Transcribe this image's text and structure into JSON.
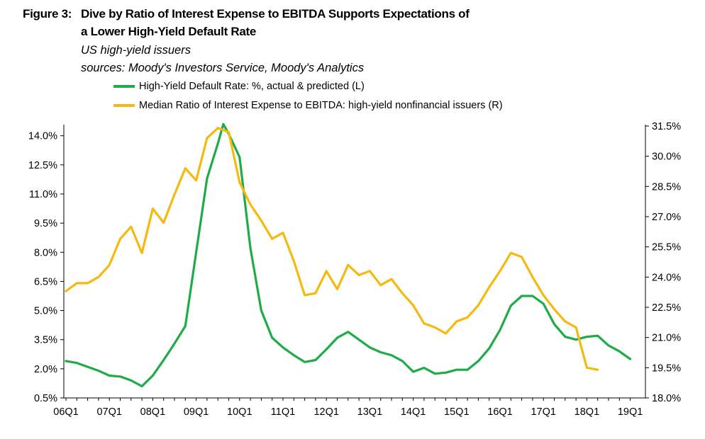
{
  "header": {
    "figure_label": "Figure 3:",
    "title_line1": "Dive by Ratio of Interest Expense to EBITDA Supports Expectations of",
    "title_line2": "a Lower High-Yield Default Rate",
    "subtitle": "US high-yield issuers",
    "sources": "sources: Moody's Investors Service, Moody's Analytics"
  },
  "colors": {
    "default_rate": "#1fab48",
    "median_ratio": "#f6b90f",
    "axis": "#000000"
  },
  "chart_data": {
    "type": "line",
    "legend": "top-left",
    "grid": false,
    "x_tick_labels": [
      "06Q1",
      "07Q1",
      "08Q1",
      "09Q1",
      "10Q1",
      "11Q1",
      "12Q1",
      "13Q1",
      "14Q1",
      "15Q1",
      "16Q1",
      "17Q1",
      "18Q1",
      "19Q1"
    ],
    "y_left": {
      "range": [
        0.5,
        14.5
      ],
      "ticks": [
        0.5,
        2.0,
        3.5,
        5.0,
        6.5,
        8.0,
        9.5,
        11.0,
        12.5,
        14.0
      ],
      "tick_labels": [
        "0.5%",
        "2.0%",
        "3.5%",
        "5.0%",
        "6.5%",
        "8.0%",
        "9.5%",
        "11.0%",
        "12.5%",
        "14.0%"
      ]
    },
    "y_right": {
      "range": [
        18.0,
        31.5
      ],
      "ticks": [
        18.0,
        19.5,
        21.0,
        22.5,
        24.0,
        25.5,
        27.0,
        28.5,
        30.0,
        31.5
      ],
      "tick_labels": [
        "18.0%",
        "19.5%",
        "21.0%",
        "22.5%",
        "24.0%",
        "25.5%",
        "27.0%",
        "28.5%",
        "30.0%",
        "31.5%"
      ]
    },
    "series": [
      {
        "name": "High-Yield Default Rate: %, actual & predicted (L)",
        "axis": "left",
        "x": [
          0,
          0.25,
          0.5,
          0.75,
          1,
          1.25,
          1.5,
          1.75,
          2,
          2.25,
          2.5,
          2.75,
          3,
          3.25,
          3.5,
          3.625,
          3.75,
          4,
          4.25,
          4.5,
          4.75,
          5,
          5.25,
          5.5,
          5.75,
          6,
          6.25,
          6.5,
          6.75,
          7,
          7.25,
          7.5,
          7.75,
          8,
          8.25,
          8.5,
          8.75,
          9,
          9.25,
          9.5,
          9.75,
          10,
          10.25,
          10.5,
          10.75,
          11,
          11.25,
          11.5,
          11.75,
          12,
          12.25,
          12.5,
          12.75,
          13
        ],
        "values": [
          2.4,
          2.3,
          2.1,
          1.9,
          1.65,
          1.6,
          1.4,
          1.1,
          1.65,
          2.45,
          3.3,
          4.2,
          8.0,
          11.8,
          13.6,
          14.6,
          14.1,
          12.9,
          8.2,
          5.0,
          3.6,
          3.1,
          2.7,
          2.35,
          2.45,
          3.0,
          3.6,
          3.9,
          3.5,
          3.1,
          2.85,
          2.7,
          2.4,
          1.85,
          2.05,
          1.75,
          1.8,
          1.95,
          1.95,
          2.4,
          3.05,
          4.0,
          5.25,
          5.75,
          5.75,
          5.35,
          4.3,
          3.65,
          3.5,
          3.65,
          3.7,
          3.2,
          2.9,
          2.5
        ]
      },
      {
        "name": "Median Ratio of Interest Expense to EBITDA: high-yield nonfinancial issuers (R)",
        "axis": "right",
        "x": [
          0,
          0.25,
          0.5,
          0.75,
          1,
          1.25,
          1.5,
          1.75,
          2,
          2.25,
          2.5,
          2.75,
          3,
          3.25,
          3.5,
          3.75,
          4,
          4.25,
          4.5,
          4.75,
          5,
          5.25,
          5.5,
          5.75,
          6,
          6.25,
          6.5,
          6.75,
          7,
          7.25,
          7.5,
          7.75,
          8,
          8.25,
          8.5,
          8.75,
          9,
          9.25,
          9.5,
          9.75,
          10,
          10.25,
          10.5,
          10.75,
          11,
          11.25,
          11.5,
          11.75,
          12,
          12.25
        ],
        "values": [
          23.3,
          23.7,
          23.7,
          24.0,
          24.6,
          25.9,
          26.5,
          25.2,
          27.4,
          26.7,
          28.1,
          29.4,
          28.8,
          30.9,
          31.4,
          31.2,
          28.7,
          27.6,
          26.8,
          25.9,
          26.2,
          24.8,
          23.1,
          23.2,
          24.3,
          23.4,
          24.6,
          24.1,
          24.3,
          23.6,
          23.9,
          23.2,
          22.6,
          21.7,
          21.5,
          21.2,
          21.8,
          22.0,
          22.6,
          23.5,
          24.3,
          25.2,
          25.0,
          24.0,
          23.1,
          22.4,
          21.8,
          21.5,
          19.5,
          19.4
        ]
      }
    ]
  }
}
